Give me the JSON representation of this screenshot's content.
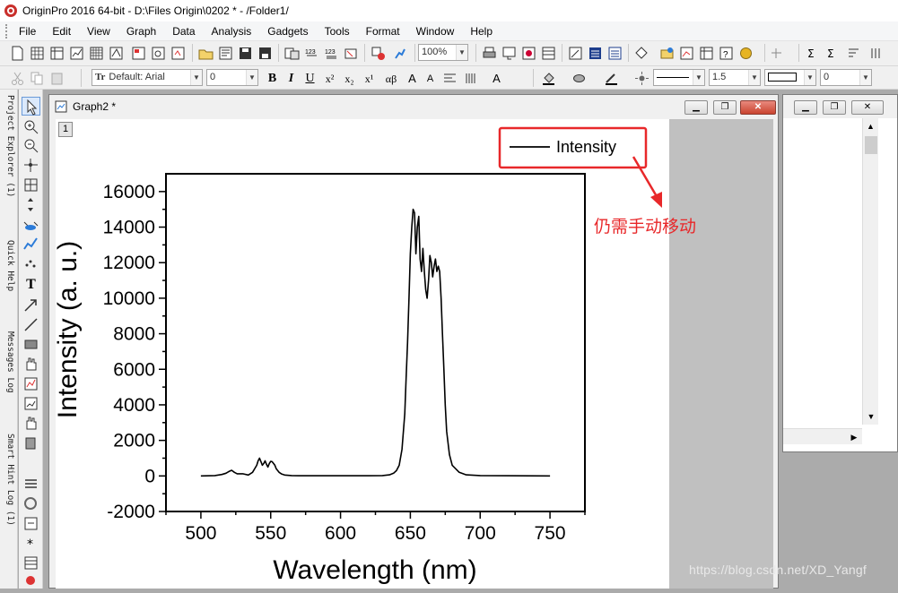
{
  "window": {
    "title": "OriginPro 2016 64-bit - D:\\Files Origin\\0202 * - /Folder1/"
  },
  "menu": [
    "File",
    "Edit",
    "View",
    "Graph",
    "Data",
    "Analysis",
    "Gadgets",
    "Tools",
    "Format",
    "Window",
    "Help"
  ],
  "toolbar": {
    "zoom_value": "100%",
    "font_value": "Default: Arial",
    "font_size_value": "0",
    "line_width_value": "1.5",
    "rotation_value": "0"
  },
  "dock_tabs": [
    "Project Explorer (1)",
    "Quick Help",
    "Messages Log",
    "Smart Hint Log (1)"
  ],
  "graph_window": {
    "title": "Graph2 *",
    "layer_label": "1"
  },
  "annotation": {
    "text": "仍需手动移动",
    "color": "#e8282a"
  },
  "watermark": "https://blog.csdn.net/XD_Yangf",
  "chart_data": {
    "type": "line",
    "xlabel": "Wavelength (nm)",
    "ylabel": "Intensity (a. u.)",
    "xlim": [
      475,
      775
    ],
    "ylim": [
      -2000,
      17000
    ],
    "xticks": [
      "500",
      "550",
      "600",
      "650",
      "700",
      "750"
    ],
    "yticks": [
      "-2000",
      "0",
      "2000",
      "4000",
      "6000",
      "8000",
      "10000",
      "12000",
      "14000",
      "16000"
    ],
    "legend_position": "top-right",
    "grid": false,
    "line_color": "#000000",
    "series": [
      {
        "name": "Intensity",
        "x": [
          500,
          510,
          515,
          518,
          520,
          522,
          524,
          526,
          530,
          534,
          537,
          540,
          541,
          542,
          543,
          544,
          545,
          546,
          547,
          548,
          549,
          550,
          551,
          552,
          553,
          554,
          556,
          558,
          560,
          565,
          570,
          580,
          600,
          620,
          630,
          635,
          638,
          640,
          642,
          644,
          646,
          647,
          648,
          649,
          650,
          651,
          652,
          653,
          654,
          655,
          656,
          657,
          658,
          659,
          660,
          661,
          662,
          663,
          664,
          665,
          666,
          667,
          668,
          669,
          670,
          671,
          672,
          673,
          674,
          675,
          676,
          678,
          680,
          685,
          690,
          700,
          720,
          750
        ],
        "y": [
          0,
          20,
          80,
          150,
          250,
          320,
          200,
          120,
          120,
          50,
          200,
          600,
          850,
          1000,
          800,
          600,
          700,
          850,
          650,
          500,
          700,
          820,
          800,
          700,
          600,
          400,
          200,
          100,
          50,
          20,
          10,
          10,
          10,
          10,
          20,
          60,
          150,
          300,
          600,
          1500,
          3500,
          5500,
          7500,
          10000,
          12500,
          14000,
          15000,
          14800,
          12500,
          14000,
          14600,
          12200,
          11500,
          12800,
          11500,
          10500,
          10000,
          11000,
          12400,
          12000,
          11200,
          11800,
          12200,
          11500,
          11800,
          11500,
          10000,
          8000,
          6000,
          4000,
          2500,
          1200,
          600,
          200,
          60,
          20,
          10,
          0
        ]
      }
    ]
  }
}
